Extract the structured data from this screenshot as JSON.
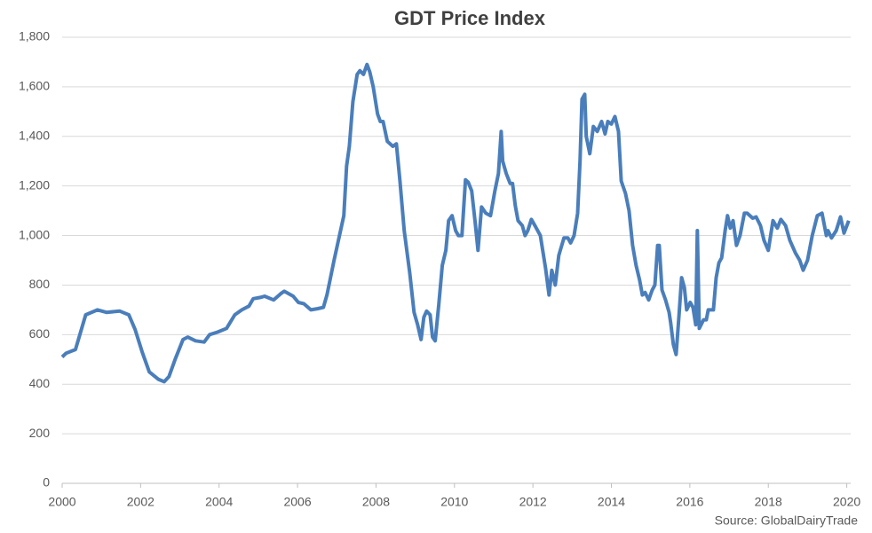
{
  "chart_data": {
    "type": "line",
    "title": "GDT Price Index",
    "source": "Source: GlobalDairyTrade",
    "x": [
      2000.0,
      2000.1,
      2000.34,
      2000.6,
      2000.9,
      2001.13,
      2001.47,
      2001.7,
      2001.86,
      2002.04,
      2002.22,
      2002.45,
      2002.6,
      2002.72,
      2002.88,
      2003.08,
      2003.2,
      2003.4,
      2003.62,
      2003.76,
      2003.96,
      2004.19,
      2004.4,
      2004.58,
      2004.76,
      2004.87,
      2005.05,
      2005.16,
      2005.39,
      2005.57,
      2005.66,
      2005.89,
      2006.02,
      2006.16,
      2006.34,
      2006.52,
      2006.66,
      2006.75,
      2006.93,
      2007.07,
      2007.18,
      2007.25,
      2007.32,
      2007.41,
      2007.52,
      2007.59,
      2007.68,
      2007.77,
      2007.84,
      2007.93,
      2008.04,
      2008.11,
      2008.18,
      2008.29,
      2008.43,
      2008.52,
      2008.61,
      2008.72,
      2008.86,
      2008.97,
      2009.06,
      2009.15,
      2009.22,
      2009.29,
      2009.38,
      2009.44,
      2009.51,
      2009.6,
      2009.69,
      2009.78,
      2009.85,
      2009.94,
      2010.03,
      2010.1,
      2010.19,
      2010.28,
      2010.35,
      2010.44,
      2010.53,
      2010.6,
      2010.69,
      2010.8,
      2010.92,
      2011.03,
      2011.12,
      2011.19,
      2011.23,
      2011.32,
      2011.42,
      2011.48,
      2011.55,
      2011.62,
      2011.73,
      2011.8,
      2011.87,
      2011.96,
      2012.05,
      2012.19,
      2012.32,
      2012.41,
      2012.48,
      2012.57,
      2012.66,
      2012.79,
      2012.89,
      2012.96,
      2013.05,
      2013.14,
      2013.2,
      2013.25,
      2013.32,
      2013.36,
      2013.45,
      2013.54,
      2013.64,
      2013.75,
      2013.84,
      2013.91,
      2014.0,
      2014.09,
      2014.18,
      2014.25,
      2014.36,
      2014.45,
      2014.54,
      2014.63,
      2014.72,
      2014.79,
      2014.86,
      2014.95,
      2015.04,
      2015.11,
      2015.18,
      2015.22,
      2015.29,
      2015.38,
      2015.47,
      2015.51,
      2015.58,
      2015.65,
      2015.72,
      2015.79,
      2015.86,
      2015.92,
      2016.01,
      2016.08,
      2016.15,
      2016.19,
      2016.24,
      2016.35,
      2016.42,
      2016.47,
      2016.6,
      2016.67,
      2016.74,
      2016.81,
      2016.9,
      2016.96,
      2017.03,
      2017.1,
      2017.19,
      2017.28,
      2017.39,
      2017.46,
      2017.6,
      2017.69,
      2017.8,
      2017.89,
      2018.0,
      2018.12,
      2018.23,
      2018.32,
      2018.44,
      2018.55,
      2018.69,
      2018.8,
      2018.89,
      2019.0,
      2019.12,
      2019.25,
      2019.37,
      2019.48,
      2019.52,
      2019.61,
      2019.73,
      2019.84,
      2019.93,
      2020.05
    ],
    "values": [
      510,
      525,
      540,
      680,
      700,
      690,
      695,
      680,
      620,
      530,
      450,
      420,
      410,
      430,
      500,
      580,
      590,
      575,
      570,
      600,
      610,
      625,
      680,
      700,
      715,
      745,
      750,
      755,
      740,
      765,
      775,
      755,
      730,
      725,
      700,
      705,
      710,
      760,
      900,
      1000,
      1080,
      1280,
      1360,
      1540,
      1650,
      1665,
      1650,
      1690,
      1660,
      1600,
      1490,
      1460,
      1460,
      1380,
      1360,
      1370,
      1220,
      1020,
      850,
      690,
      640,
      580,
      670,
      695,
      680,
      590,
      575,
      720,
      880,
      940,
      1060,
      1080,
      1020,
      1000,
      1000,
      1225,
      1215,
      1180,
      1050,
      940,
      1115,
      1090,
      1080,
      1180,
      1250,
      1420,
      1300,
      1250,
      1210,
      1210,
      1120,
      1060,
      1040,
      1000,
      1020,
      1065,
      1040,
      1000,
      870,
      760,
      860,
      800,
      920,
      990,
      990,
      970,
      1000,
      1090,
      1300,
      1550,
      1570,
      1400,
      1330,
      1440,
      1420,
      1460,
      1410,
      1460,
      1450,
      1480,
      1420,
      1220,
      1170,
      1100,
      960,
      880,
      820,
      760,
      770,
      740,
      780,
      800,
      960,
      960,
      780,
      740,
      690,
      650,
      560,
      520,
      670,
      830,
      790,
      700,
      730,
      710,
      640,
      1020,
      625,
      660,
      660,
      700,
      700,
      830,
      890,
      910,
      1020,
      1080,
      1030,
      1060,
      960,
      1000,
      1090,
      1090,
      1070,
      1075,
      1040,
      980,
      940,
      1060,
      1030,
      1065,
      1040,
      980,
      930,
      900,
      860,
      900,
      1000,
      1080,
      1090,
      1000,
      1020,
      990,
      1020,
      1075,
      1010,
      1060
    ],
    "color": "#4a7ebb",
    "xlim": [
      2000,
      2020.1
    ],
    "xticks": [
      2000,
      2002,
      2004,
      2006,
      2008,
      2010,
      2012,
      2014,
      2016,
      2018,
      2020
    ],
    "ylim": [
      0,
      1800
    ],
    "yticks": [
      0,
      200,
      400,
      600,
      800,
      {
        "value": 1000,
        "label": "1,000"
      },
      {
        "value": 1200,
        "label": "1,200"
      },
      {
        "value": 1400,
        "label": "1,400"
      },
      {
        "value": 1600,
        "label": "1,600"
      },
      {
        "value": 1800,
        "label": "1,800"
      }
    ],
    "grid": true
  }
}
